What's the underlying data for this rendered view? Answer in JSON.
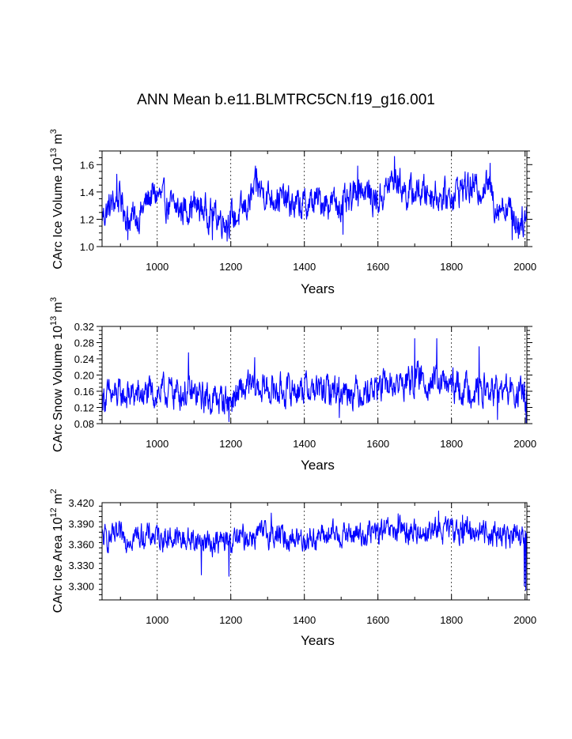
{
  "title": "ANN Mean b.e11.BLMTRC5CN.f19_g16.001",
  "chart_data": [
    {
      "type": "line",
      "ylabel_main": "CArc Ice Volume 10",
      "ylabel_exp": "13",
      "ylabel_unit": "m",
      "ylabel_unit_exp": "3",
      "xlabel": "Years",
      "xlim": [
        850,
        2005
      ],
      "ylim": [
        1.0,
        1.7
      ],
      "xticks": [
        1000,
        1200,
        1400,
        1600,
        1800,
        2000
      ],
      "yticks": [
        1.0,
        1.2,
        1.4,
        1.6
      ],
      "ytick_labels": [
        "1.0",
        "1.2",
        "1.4",
        "1.6"
      ],
      "xtick_labels": [
        "1000",
        "1200",
        "1400",
        "1600",
        "1800",
        "2000"
      ],
      "series_color": "#0000ff",
      "trend": [
        [
          850,
          1.22
        ],
        [
          880,
          1.32
        ],
        [
          900,
          1.36
        ],
        [
          920,
          1.2
        ],
        [
          950,
          1.22
        ],
        [
          980,
          1.37
        ],
        [
          1000,
          1.38
        ],
        [
          1030,
          1.3
        ],
        [
          1060,
          1.27
        ],
        [
          1100,
          1.3
        ],
        [
          1140,
          1.25
        ],
        [
          1180,
          1.2
        ],
        [
          1220,
          1.22
        ],
        [
          1250,
          1.32
        ],
        [
          1270,
          1.44
        ],
        [
          1300,
          1.38
        ],
        [
          1330,
          1.36
        ],
        [
          1370,
          1.3
        ],
        [
          1400,
          1.3
        ],
        [
          1440,
          1.34
        ],
        [
          1480,
          1.32
        ],
        [
          1520,
          1.3
        ],
        [
          1550,
          1.45
        ],
        [
          1580,
          1.37
        ],
        [
          1600,
          1.33
        ],
        [
          1630,
          1.45
        ],
        [
          1650,
          1.5
        ],
        [
          1680,
          1.38
        ],
        [
          1700,
          1.4
        ],
        [
          1740,
          1.4
        ],
        [
          1780,
          1.36
        ],
        [
          1800,
          1.38
        ],
        [
          1830,
          1.44
        ],
        [
          1870,
          1.42
        ],
        [
          1900,
          1.46
        ],
        [
          1920,
          1.3
        ],
        [
          1950,
          1.3
        ],
        [
          1980,
          1.18
        ],
        [
          2005,
          1.22
        ]
      ],
      "noise_amplitude": 0.09,
      "minima": [
        [
          920,
          1.05
        ],
        [
          1150,
          1.05
        ],
        [
          1190,
          1.04
        ],
        [
          1505,
          1.09
        ],
        [
          1965,
          1.05
        ],
        [
          1982,
          1.06
        ]
      ],
      "maxima": [
        [
          890,
          1.53
        ],
        [
          1270,
          1.57
        ],
        [
          1545,
          1.59
        ],
        [
          1645,
          1.66
        ],
        [
          1905,
          1.61
        ]
      ]
    },
    {
      "type": "line",
      "ylabel_main": "CArc Snow Volume 10",
      "ylabel_exp": "13",
      "ylabel_unit": "m",
      "ylabel_unit_exp": "3",
      "xlabel": "Years",
      "xlim": [
        850,
        2005
      ],
      "ylim": [
        0.08,
        0.32
      ],
      "xticks": [
        1000,
        1200,
        1400,
        1600,
        1800,
        2000
      ],
      "yticks": [
        0.08,
        0.12,
        0.16,
        0.2,
        0.24,
        0.28,
        0.32
      ],
      "ytick_labels": [
        "0.08",
        "0.12",
        "0.16",
        "0.20",
        "0.24",
        "0.28",
        "0.32"
      ],
      "xtick_labels": [
        "1000",
        "1200",
        "1400",
        "1600",
        "1800",
        "2000"
      ],
      "series_color": "#0000ff",
      "trend": [
        [
          850,
          0.145
        ],
        [
          900,
          0.15
        ],
        [
          950,
          0.15
        ],
        [
          1000,
          0.155
        ],
        [
          1050,
          0.16
        ],
        [
          1100,
          0.15
        ],
        [
          1150,
          0.14
        ],
        [
          1200,
          0.14
        ],
        [
          1250,
          0.17
        ],
        [
          1300,
          0.165
        ],
        [
          1350,
          0.16
        ],
        [
          1400,
          0.17
        ],
        [
          1450,
          0.16
        ],
        [
          1500,
          0.165
        ],
        [
          1550,
          0.16
        ],
        [
          1600,
          0.17
        ],
        [
          1650,
          0.175
        ],
        [
          1700,
          0.19
        ],
        [
          1750,
          0.185
        ],
        [
          1800,
          0.17
        ],
        [
          1850,
          0.165
        ],
        [
          1900,
          0.16
        ],
        [
          1950,
          0.16
        ],
        [
          2005,
          0.15
        ]
      ],
      "noise_amplitude": 0.03,
      "minima": [
        [
          1195,
          0.085
        ],
        [
          1495,
          0.095
        ],
        [
          1925,
          0.09
        ],
        [
          2003,
          0.082
        ]
      ],
      "maxima": [
        [
          1085,
          0.255
        ],
        [
          1265,
          0.243
        ],
        [
          1700,
          0.29
        ],
        [
          1760,
          0.29
        ],
        [
          1875,
          0.27
        ]
      ]
    },
    {
      "type": "line",
      "ylabel_main": "CArc Ice Area 10",
      "ylabel_exp": "12",
      "ylabel_unit": "m",
      "ylabel_unit_exp": "2",
      "xlabel": "Years",
      "xlim": [
        850,
        2005
      ],
      "ylim": [
        3.28,
        3.42
      ],
      "xticks": [
        1000,
        1200,
        1400,
        1600,
        1800,
        2000
      ],
      "yticks": [
        3.3,
        3.33,
        3.36,
        3.39,
        3.42
      ],
      "ytick_labels": [
        "3.300",
        "3.330",
        "3.360",
        "3.390",
        "3.420"
      ],
      "xtick_labels": [
        "1000",
        "1200",
        "1400",
        "1600",
        "1800",
        "2000"
      ],
      "series_color": "#0000ff",
      "trend": [
        [
          850,
          3.368
        ],
        [
          900,
          3.37
        ],
        [
          950,
          3.372
        ],
        [
          1000,
          3.372
        ],
        [
          1050,
          3.368
        ],
        [
          1100,
          3.366
        ],
        [
          1150,
          3.362
        ],
        [
          1200,
          3.364
        ],
        [
          1250,
          3.372
        ],
        [
          1300,
          3.375
        ],
        [
          1350,
          3.37
        ],
        [
          1400,
          3.368
        ],
        [
          1450,
          3.372
        ],
        [
          1500,
          3.374
        ],
        [
          1550,
          3.374
        ],
        [
          1600,
          3.377
        ],
        [
          1650,
          3.378
        ],
        [
          1700,
          3.378
        ],
        [
          1750,
          3.38
        ],
        [
          1800,
          3.38
        ],
        [
          1850,
          3.38
        ],
        [
          1900,
          3.378
        ],
        [
          1950,
          3.372
        ],
        [
          1990,
          3.368
        ],
        [
          2005,
          3.366
        ]
      ],
      "noise_amplitude": 0.014,
      "minima": [
        [
          1120,
          3.316
        ],
        [
          1195,
          3.314
        ],
        [
          1998,
          3.3
        ],
        [
          2002,
          3.294
        ]
      ],
      "maxima": [
        [
          1310,
          3.405
        ],
        [
          1655,
          3.404
        ],
        [
          1765,
          3.408
        ],
        [
          1830,
          3.402
        ]
      ]
    }
  ]
}
